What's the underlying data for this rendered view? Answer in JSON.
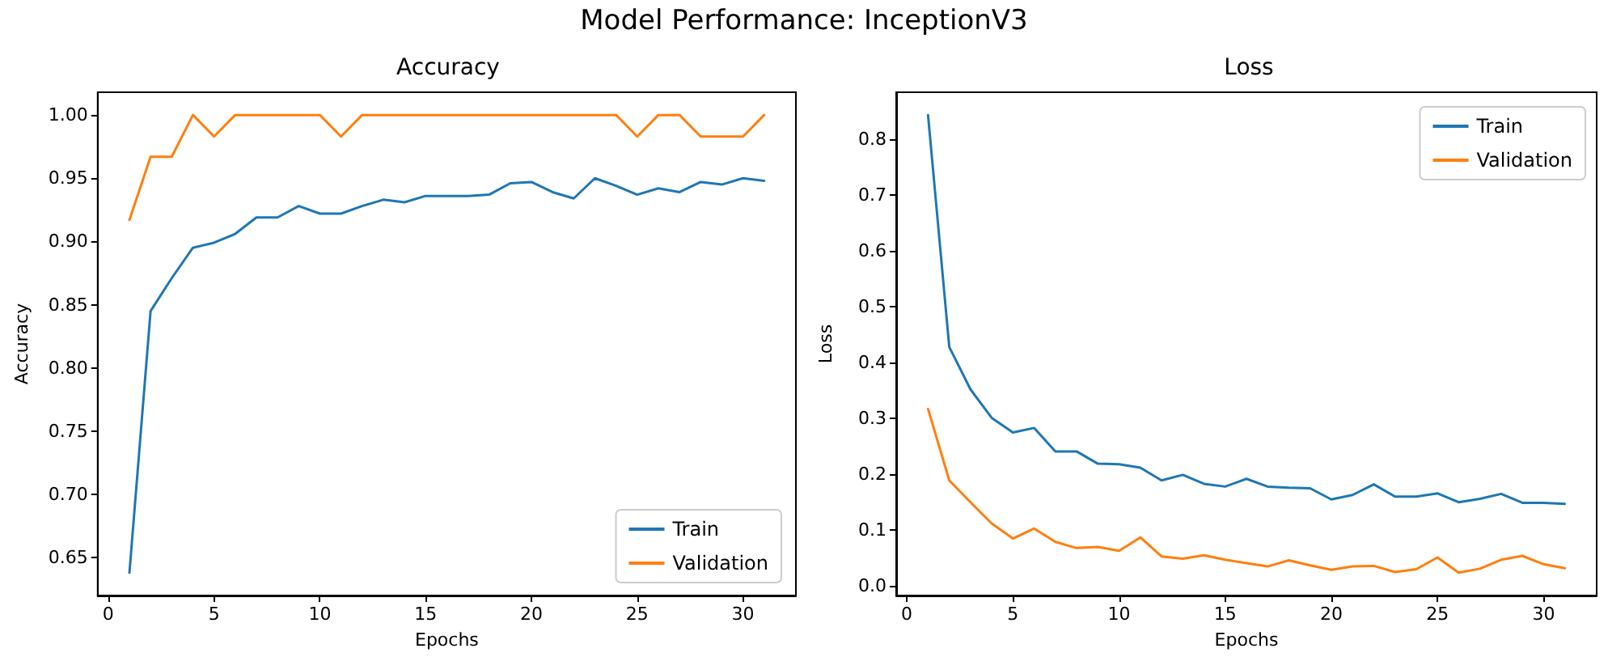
{
  "chart_data": [
    {
      "type": "line",
      "title": "Accuracy",
      "xlabel": "Epochs",
      "ylabel": "Accuracy",
      "annotations": [
        "Model Performance: InceptionV3"
      ],
      "legend": "bottom right",
      "grid": false,
      "marker": "none",
      "line_style": "solid",
      "x": [
        1,
        2,
        3,
        4,
        5,
        6,
        7,
        8,
        9,
        10,
        11,
        12,
        13,
        14,
        15,
        16,
        17,
        18,
        19,
        20,
        21,
        22,
        23,
        24,
        25,
        26,
        27,
        28,
        29,
        30,
        31
      ],
      "xlim": [
        -0.5,
        32.5
      ],
      "xticks": [
        0,
        5,
        10,
        15,
        20,
        25,
        30
      ],
      "ylim": [
        0.62,
        1.018
      ],
      "yticks": [
        {
          "value": 0.65,
          "label": "0.65"
        },
        {
          "value": 0.7,
          "label": "0.70"
        },
        {
          "value": 0.75,
          "label": "0.75"
        },
        {
          "value": 0.8,
          "label": "0.80"
        },
        {
          "value": 0.85,
          "label": "0.85"
        },
        {
          "value": 0.9,
          "label": "0.90"
        },
        {
          "value": 0.95,
          "label": "0.95"
        },
        {
          "value": 1.0,
          "label": "1.00"
        }
      ],
      "series": [
        {
          "name": "Train",
          "color": "#1f77b4",
          "values": [
            0.638,
            0.845,
            0.871,
            0.895,
            0.899,
            0.906,
            0.919,
            0.919,
            0.928,
            0.922,
            0.922,
            0.928,
            0.933,
            0.931,
            0.936,
            0.936,
            0.936,
            0.937,
            0.946,
            0.947,
            0.939,
            0.934,
            0.95,
            0.944,
            0.937,
            0.942,
            0.939,
            0.947,
            0.945,
            0.95,
            0.948
          ]
        },
        {
          "name": "Validation",
          "color": "#ff7f0e",
          "values": [
            0.917,
            0.967,
            0.967,
            1.0,
            0.983,
            1.0,
            1.0,
            1.0,
            1.0,
            1.0,
            0.983,
            1.0,
            1.0,
            1.0,
            1.0,
            1.0,
            1.0,
            1.0,
            1.0,
            1.0,
            1.0,
            1.0,
            1.0,
            1.0,
            0.983,
            1.0,
            1.0,
            0.983,
            0.983,
            0.983,
            1.0
          ]
        }
      ]
    },
    {
      "type": "line",
      "title": "Loss",
      "xlabel": "Epochs",
      "ylabel": "Loss",
      "legend": "top right",
      "grid": false,
      "marker": "none",
      "line_style": "solid",
      "x": [
        1,
        2,
        3,
        4,
        5,
        6,
        7,
        8,
        9,
        10,
        11,
        12,
        13,
        14,
        15,
        16,
        17,
        18,
        19,
        20,
        21,
        22,
        23,
        24,
        25,
        26,
        27,
        28,
        29,
        30,
        31
      ],
      "xlim": [
        -0.5,
        32.5
      ],
      "xticks": [
        0,
        5,
        10,
        15,
        20,
        25,
        30
      ],
      "ylim": [
        -0.017,
        0.884
      ],
      "yticks": [
        {
          "value": 0,
          "label": "0.0"
        },
        {
          "value": 0.1,
          "label": "0.1"
        },
        {
          "value": 0.2,
          "label": "0.2"
        },
        {
          "value": 0.3,
          "label": "0.3"
        },
        {
          "value": 0.4,
          "label": "0.4"
        },
        {
          "value": 0.5,
          "label": "0.5"
        },
        {
          "value": 0.6,
          "label": "0.6"
        },
        {
          "value": 0.7,
          "label": "0.7"
        },
        {
          "value": 0.8,
          "label": "0.8"
        }
      ],
      "series": [
        {
          "name": "Train",
          "color": "#1f77b4",
          "values": [
            0.843,
            0.428,
            0.352,
            0.301,
            0.275,
            0.283,
            0.241,
            0.241,
            0.219,
            0.218,
            0.212,
            0.189,
            0.199,
            0.183,
            0.178,
            0.192,
            0.178,
            0.176,
            0.175,
            0.155,
            0.163,
            0.182,
            0.16,
            0.16,
            0.166,
            0.15,
            0.156,
            0.165,
            0.149,
            0.149,
            0.147
          ]
        },
        {
          "name": "Validation",
          "color": "#ff7f0e",
          "values": [
            0.317,
            0.189,
            0.15,
            0.112,
            0.085,
            0.103,
            0.079,
            0.068,
            0.07,
            0.063,
            0.087,
            0.053,
            0.049,
            0.055,
            0.047,
            0.041,
            0.035,
            0.046,
            0.037,
            0.029,
            0.035,
            0.036,
            0.025,
            0.03,
            0.051,
            0.024,
            0.031,
            0.047,
            0.054,
            0.039,
            0.032
          ]
        }
      ]
    }
  ]
}
